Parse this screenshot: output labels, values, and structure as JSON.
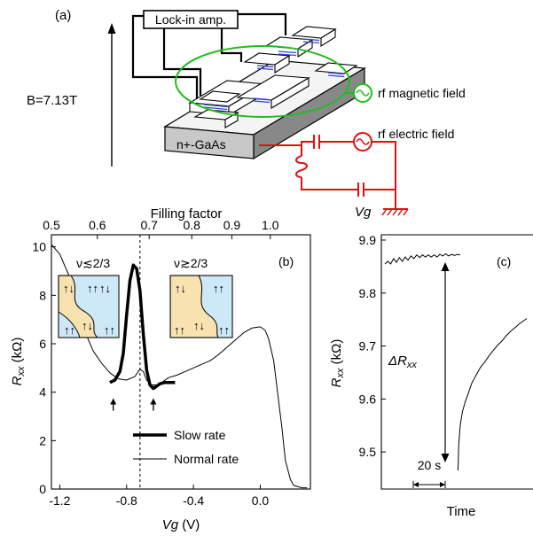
{
  "panel_a": {
    "label": "(a)",
    "lockin_label": "Lock-in amp.",
    "field_label": "B=7.13T",
    "substrate_label": "n+-GaAs",
    "rf_magnetic_label": "rf magnetic field",
    "rf_electric_label": "rf electric field",
    "gate_label": "Vg",
    "colors": {
      "magnetic_loop": "#22bb22",
      "electric_circuit": "#e01010",
      "layer": "#3344cc"
    }
  },
  "chart_data": [
    {
      "type": "line",
      "panel_label": "(b)",
      "xlabel": "Vg (V)",
      "ylabel": "Rxx (kΩ)",
      "xlim": [
        -1.25,
        0.3
      ],
      "ylim": [
        0,
        10.5
      ],
      "x_ticks": [
        -1.2,
        -0.8,
        -0.4,
        0.0
      ],
      "x_tick_labels": [
        "-1.2",
        "-0.8",
        "-0.4",
        "0.0"
      ],
      "y_ticks": [
        0,
        2,
        4,
        6,
        8,
        10
      ],
      "y_tick_labels": [
        "0",
        "2",
        "4",
        "6",
        "8",
        "10"
      ],
      "top_axis": {
        "label": "Filling factor",
        "ticks": [
          0.5,
          0.6,
          0.7,
          0.8,
          0.9,
          1.0
        ],
        "tick_labels": [
          "0.5",
          "0.6",
          "0.7",
          "0.8",
          "0.9",
          "1.0"
        ],
        "positions_vg": [
          -1.285,
          -0.975,
          -0.665,
          -0.41,
          -0.17,
          0.06
        ]
      },
      "dashed_line_vg": -0.72,
      "arrows_vg": [
        -0.88,
        -0.64
      ],
      "series": [
        {
          "name": "Normal rate",
          "color": "#000000",
          "x": [
            -1.25,
            -1.2,
            -1.15,
            -1.1,
            -1.05,
            -1.0,
            -0.95,
            -0.9,
            -0.85,
            -0.8,
            -0.75,
            -0.72,
            -0.7,
            -0.68,
            -0.65,
            -0.62,
            -0.6,
            -0.55,
            -0.5,
            -0.45,
            -0.4,
            -0.35,
            -0.3,
            -0.25,
            -0.2,
            -0.15,
            -0.1,
            -0.05,
            0.0,
            0.03,
            0.05,
            0.08,
            0.1,
            0.13,
            0.15,
            0.18,
            0.2,
            0.25,
            0.28
          ],
          "y": [
            10.1,
            9.7,
            8.9,
            7.6,
            6.5,
            5.7,
            5.2,
            4.8,
            4.55,
            4.5,
            4.65,
            4.95,
            4.85,
            4.5,
            4.3,
            4.3,
            4.35,
            4.6,
            4.7,
            4.85,
            5.0,
            5.15,
            5.3,
            5.55,
            5.85,
            6.15,
            6.45,
            6.65,
            6.7,
            6.55,
            6.2,
            5.3,
            4.2,
            2.5,
            1.2,
            0.4,
            0.15,
            0.05,
            0.05
          ]
        },
        {
          "name": "Slow rate",
          "color": "#000000",
          "x": [
            -0.9,
            -0.87,
            -0.84,
            -0.82,
            -0.8,
            -0.78,
            -0.76,
            -0.74,
            -0.72,
            -0.7,
            -0.68,
            -0.66,
            -0.64,
            -0.62,
            -0.6,
            -0.57,
            -0.54,
            -0.51
          ],
          "y": [
            4.4,
            4.5,
            4.85,
            5.6,
            7.2,
            8.6,
            9.25,
            9.1,
            8.2,
            6.4,
            4.9,
            4.3,
            4.15,
            4.25,
            4.35,
            4.4,
            4.4,
            4.4
          ]
        }
      ],
      "insets": [
        {
          "label": "ν≲2/3",
          "spin_flip": "↑↓",
          "spin_pol": "↑↑"
        },
        {
          "label": "ν≳2/3",
          "spin_flip": "↑↓",
          "spin_pol": "↑↑"
        }
      ],
      "legend": {
        "position": "bottom-right",
        "entries": [
          "Slow rate",
          "Normal rate"
        ]
      }
    },
    {
      "type": "line",
      "panel_label": "(c)",
      "xlabel": "Time",
      "ylabel": "Rxx (kΩ)",
      "ylim": [
        9.43,
        9.91
      ],
      "y_ticks": [
        9.5,
        9.6,
        9.7,
        9.8,
        9.9
      ],
      "y_tick_labels": [
        "9.5",
        "9.6",
        "9.7",
        "9.8",
        "9.9"
      ],
      "delta_label": "ΔRxx",
      "scale_label": "20 s",
      "scale_seconds": 20,
      "series": [
        {
          "name": "",
          "color": "#000000",
          "t": [
            0,
            4,
            8,
            12,
            16,
            20,
            24,
            28,
            32,
            36,
            40,
            44,
            48,
            52,
            56,
            60,
            64,
            68,
            72,
            76,
            80,
            84,
            88,
            92,
            96,
            100,
            104
          ],
          "y": [
            9.855,
            9.86,
            9.855,
            9.865,
            9.858,
            9.867,
            9.86,
            9.868,
            9.862,
            9.87,
            9.865,
            9.872,
            9.867,
            9.872,
            9.868,
            9.872,
            9.868,
            9.872,
            9.868,
            9.873,
            9.87,
            9.874,
            9.87,
            9.873,
            9.871,
            9.873,
            9.872
          ]
        },
        {
          "name": "",
          "color": "#000000",
          "t": [
            101,
            102,
            104,
            107,
            111,
            115,
            120,
            126,
            132,
            138,
            144,
            150,
            156,
            162,
            168,
            174,
            180,
            186,
            192,
            196
          ],
          "y": [
            9.465,
            9.515,
            9.55,
            9.575,
            9.595,
            9.61,
            9.63,
            9.645,
            9.66,
            9.67,
            9.682,
            9.692,
            9.702,
            9.71,
            9.72,
            9.728,
            9.735,
            9.742,
            9.748,
            9.752
          ]
        }
      ]
    }
  ]
}
